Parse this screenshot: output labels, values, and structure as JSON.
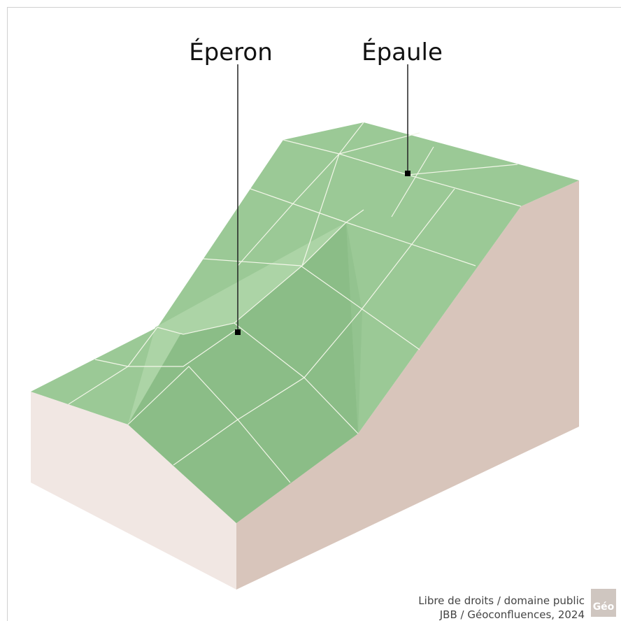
{
  "labels": [
    "Éperon",
    "Épaule"
  ],
  "credit": [
    "Libre de droits / domaine public",
    "JBB / Géoconfluences, 2024"
  ],
  "logo": "Géo"
}
